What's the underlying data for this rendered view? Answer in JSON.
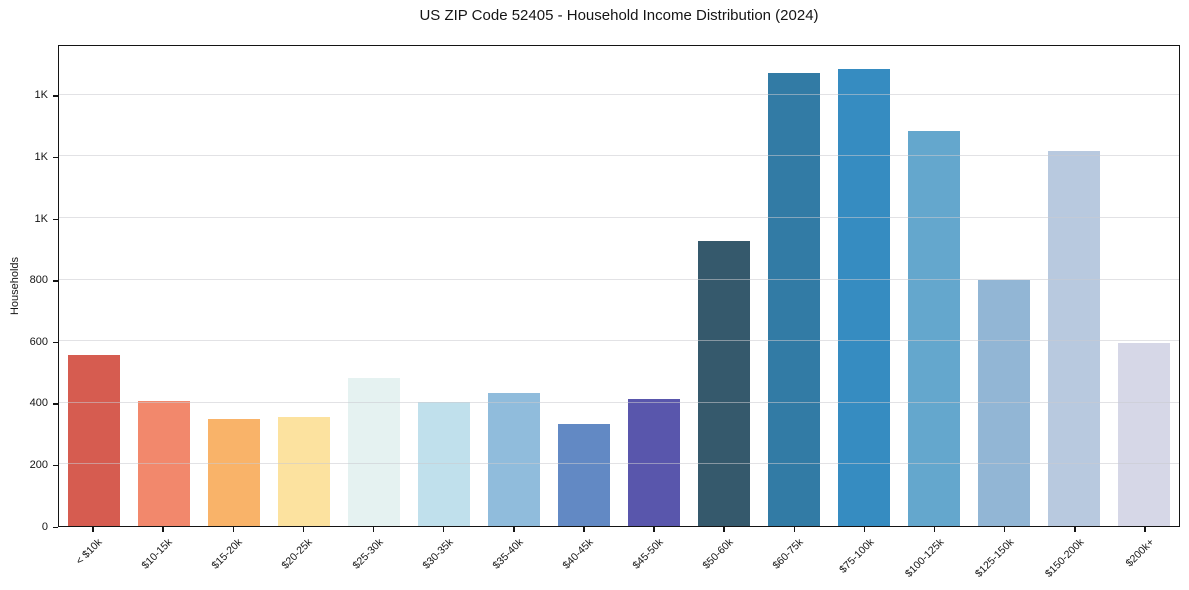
{
  "figure": {
    "title": "US ZIP Code 52405 - Household Income Distribution (2024)",
    "y_axis_label": "Households"
  },
  "chart_data": {
    "type": "bar",
    "title": "US ZIP Code 52405 - Household Income Distribution (2024)",
    "xlabel": "",
    "ylabel": "Households",
    "categories": [
      "< $10k",
      "$10-15k",
      "$15-20k",
      "$20-25k",
      "$25-30k",
      "$30-35k",
      "$35-40k",
      "$40-45k",
      "$45-50k",
      "$50-60k",
      "$60-75k",
      "$75-100k",
      "$100-125k",
      "$125-150k",
      "$150-200k",
      "$200k+"
    ],
    "values": [
      558,
      406,
      348,
      357,
      483,
      405,
      433,
      331,
      415,
      929,
      1478,
      1490,
      1289,
      801,
      1223,
      598
    ],
    "bar_colors": [
      "#d65c50",
      "#f2886c",
      "#f9b369",
      "#fce29f",
      "#e5f2f1",
      "#c0e0ec",
      "#90bcdc",
      "#6289c4",
      "#5956ac",
      "#35596c",
      "#327ba5",
      "#368cc1",
      "#64a7cd",
      "#92b6d5",
      "#b8c9df",
      "#d6d7e7"
    ],
    "ylim": [
      0,
      1565
    ],
    "yticks": [
      {
        "value": 0,
        "label": "0"
      },
      {
        "value": 200,
        "label": "200"
      },
      {
        "value": 400,
        "label": "400"
      },
      {
        "value": 600,
        "label": "600"
      },
      {
        "value": 800,
        "label": "800"
      },
      {
        "value": 1000,
        "label": "1K"
      },
      {
        "value": 1200,
        "label": "1K"
      },
      {
        "value": 1400,
        "label": "1K"
      }
    ],
    "grid": "horizontal",
    "legend": "none"
  }
}
